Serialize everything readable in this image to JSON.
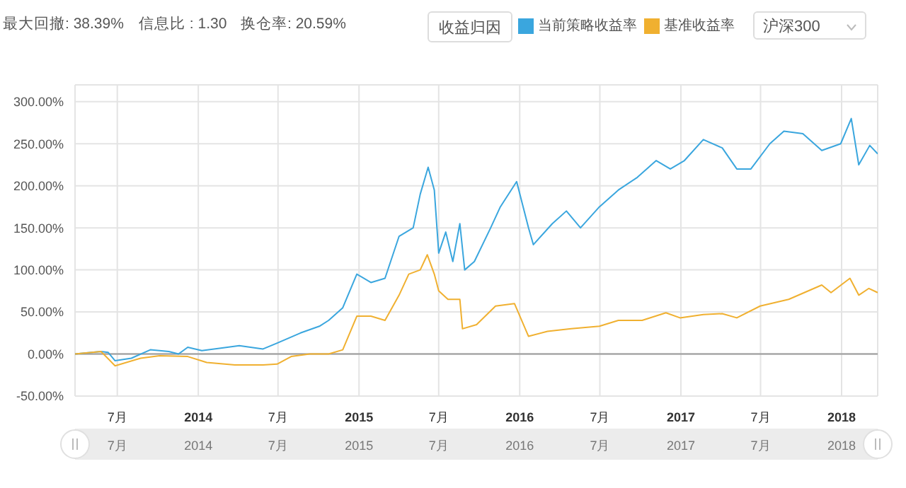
{
  "chart_data": {
    "type": "line",
    "annotations": [
      "最大回撤: 38.39%",
      "信息比 : 1.30",
      "换仓率: 20.59%",
      "收益归因",
      "沪深300"
    ],
    "legend": "top right",
    "grid": true,
    "marker": "none",
    "xlim": [
      "2013-03-27",
      "2018-03-24"
    ],
    "xticks": [
      {
        "value": "2013-07",
        "label": "7月"
      },
      {
        "value": "2014",
        "label": "2014"
      },
      {
        "value": "2014-07",
        "label": "7月"
      },
      {
        "value": "2015",
        "label": "2015"
      },
      {
        "value": "2015-07",
        "label": "7月"
      },
      {
        "value": "2016",
        "label": "2016"
      },
      {
        "value": "2016-07",
        "label": "7月"
      },
      {
        "value": "2017",
        "label": "2017"
      },
      {
        "value": "2017-07",
        "label": "7月"
      },
      {
        "value": "2018",
        "label": "2018"
      }
    ],
    "ylim": [
      -50,
      320
    ],
    "yticks": [
      {
        "value": -50,
        "label": "-50.00%"
      },
      {
        "value": 0,
        "label": "0.00%"
      },
      {
        "value": 50,
        "label": "50.00%"
      },
      {
        "value": 100,
        "label": "100.00%"
      },
      {
        "value": 150,
        "label": "150.00%"
      },
      {
        "value": 200,
        "label": "200.00%"
      },
      {
        "value": 250,
        "label": "250.00%"
      },
      {
        "value": 300,
        "label": "300.00%"
      }
    ],
    "ref_lines": [
      {
        "axis": "y",
        "value": 0,
        "color": "#999999"
      }
    ],
    "series": [
      {
        "name": "当前策略收益率",
        "color": "#3aa6de",
        "x": [
          "2013-03-27",
          "2013-05-25",
          "2013-06-10",
          "2013-06-26",
          "2013-08-02",
          "2013-09-14",
          "2013-10-26",
          "2013-11-17",
          "2013-12-08",
          "2014-01-09",
          "2014-02-21",
          "2014-04-04",
          "2014-05-28",
          "2014-06-29",
          "2014-08-21",
          "2014-10-03",
          "2014-10-24",
          "2014-11-25",
          "2014-12-27",
          "2015-01-28",
          "2015-03-01",
          "2015-04-02",
          "2015-05-04",
          "2015-05-20",
          "2015-06-07",
          "2015-06-21",
          "2015-07-01",
          "2015-07-17",
          "2015-08-02",
          "2015-08-18",
          "2015-08-29",
          "2015-09-20",
          "2015-10-27",
          "2015-11-18",
          "2015-12-25",
          "2016-01-21",
          "2016-02-01",
          "2016-03-15",
          "2016-04-16",
          "2016-05-18",
          "2016-06-30",
          "2016-08-12",
          "2016-09-24",
          "2016-11-06",
          "2016-12-08",
          "2017-01-09",
          "2017-02-21",
          "2017-04-05",
          "2017-05-08",
          "2017-06-09",
          "2017-07-22",
          "2017-08-23",
          "2017-10-05",
          "2017-11-17",
          "2017-12-30",
          "2018-01-23",
          "2018-02-09",
          "2018-03-06",
          "2018-03-24"
        ],
        "values": [
          0,
          3,
          2,
          -8,
          -5,
          5,
          3,
          0,
          8,
          4,
          7,
          10,
          6,
          13,
          25,
          33,
          40,
          55,
          95,
          85,
          90,
          140,
          150,
          190,
          222,
          195,
          120,
          145,
          110,
          155,
          100,
          110,
          150,
          175,
          205,
          150,
          130,
          155,
          170,
          150,
          175,
          195,
          210,
          230,
          220,
          230,
          255,
          245,
          220,
          220,
          250,
          265,
          262,
          242,
          250,
          280,
          225,
          248,
          238
        ]
      },
      {
        "name": "基准收益率",
        "color": "#f0b030",
        "x": [
          "2013-03-27",
          "2013-05-25",
          "2013-06-26",
          "2013-08-23",
          "2013-10-05",
          "2013-12-08",
          "2014-01-20",
          "2014-03-25",
          "2014-05-28",
          "2014-06-29",
          "2014-07-31",
          "2014-09-11",
          "2014-10-24",
          "2014-11-25",
          "2014-12-27",
          "2015-01-28",
          "2015-03-01",
          "2015-04-02",
          "2015-04-24",
          "2015-05-20",
          "2015-06-05",
          "2015-06-21",
          "2015-07-01",
          "2015-07-22",
          "2015-08-18",
          "2015-08-24",
          "2015-09-25",
          "2015-11-07",
          "2015-12-20",
          "2016-01-21",
          "2016-03-04",
          "2016-04-27",
          "2016-06-30",
          "2016-08-12",
          "2016-10-05",
          "2016-11-28",
          "2016-12-30",
          "2017-02-21",
          "2017-04-05",
          "2017-05-08",
          "2017-06-30",
          "2017-09-03",
          "2017-11-17",
          "2017-12-08",
          "2018-01-20",
          "2018-02-09",
          "2018-03-04",
          "2018-03-24"
        ],
        "values": [
          0,
          3,
          -14,
          -5,
          -2,
          -3,
          -10,
          -13,
          -13,
          -12,
          -3,
          0,
          0,
          5,
          45,
          45,
          40,
          70,
          95,
          100,
          118,
          95,
          75,
          65,
          65,
          30,
          35,
          57,
          60,
          21,
          27,
          30,
          33,
          40,
          40,
          49,
          43,
          47,
          48,
          43,
          57,
          65,
          82,
          73,
          90,
          70,
          78,
          73
        ]
      }
    ]
  }
}
